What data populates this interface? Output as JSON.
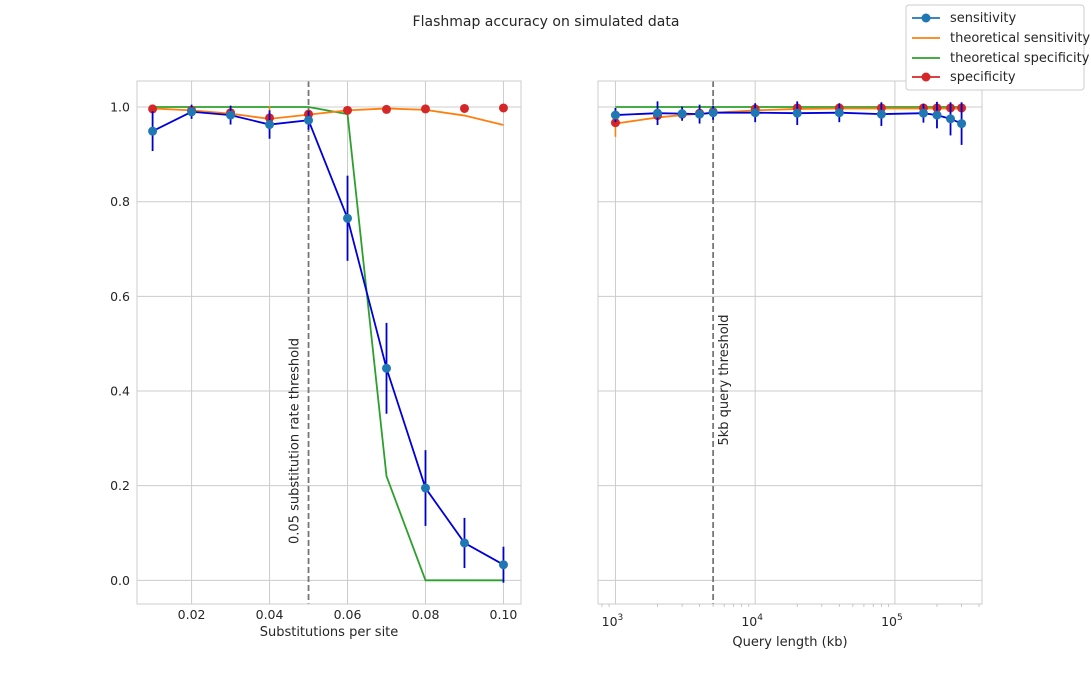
{
  "figure": {
    "suptitle": "Flashmap accuracy on simulated data"
  },
  "legend": {
    "placement": "upper right",
    "entries": [
      {
        "label": "sensitivity",
        "color": "#1f77b4",
        "marker": "circle"
      },
      {
        "label": "theoretical sensitivity",
        "color": "#ff7f0e",
        "marker": "none"
      },
      {
        "label": "theoretical specificity",
        "color": "#2ca02c",
        "marker": "none"
      },
      {
        "label": "specificity",
        "color": "#d62728",
        "marker": "circle"
      }
    ]
  },
  "chart_data": [
    {
      "type": "line",
      "panel": "left",
      "xlabel": "Substitutions per site",
      "ylabel": "",
      "xlim": [
        0.006,
        0.1045
      ],
      "ylim": [
        -0.05,
        1.055
      ],
      "xticks": [
        0.02,
        0.04,
        0.06,
        0.08,
        0.1
      ],
      "xtick_labels": [
        "0.02",
        "0.04",
        "0.06",
        "0.08",
        "0.10"
      ],
      "yticks": [
        0.0,
        0.2,
        0.4,
        0.6,
        0.8,
        1.0
      ],
      "ytick_labels": [
        "0.0",
        "0.2",
        "0.4",
        "0.6",
        "0.8",
        "1.0"
      ],
      "grid": true,
      "threshold": {
        "x": 0.05,
        "label": "0.05 substitution rate threshold",
        "color": "#777777"
      },
      "series": [
        {
          "name": "sensitivity",
          "color": "#1f77b4",
          "line_color": "#0000dd",
          "err_color": "#0000cc",
          "x": [
            0.01,
            0.02,
            0.03,
            0.04,
            0.05,
            0.06,
            0.07,
            0.08,
            0.09,
            0.1
          ],
          "y": [
            0.949,
            0.99,
            0.983,
            0.963,
            0.972,
            0.765,
            0.448,
            0.195,
            0.079,
            0.033
          ],
          "err": [
            0.042,
            0.015,
            0.02,
            0.03,
            0.02,
            0.09,
            0.096,
            0.08,
            0.053,
            0.038
          ]
        },
        {
          "name": "theoretical sensitivity",
          "color": "#ff7f0e",
          "x": [
            0.01,
            0.02,
            0.03,
            0.04,
            0.05,
            0.06,
            0.07,
            0.08,
            0.09,
            0.1
          ],
          "y": [
            0.997,
            0.993,
            0.986,
            0.975,
            0.984,
            0.993,
            0.997,
            0.994,
            0.982,
            0.962
          ]
        },
        {
          "name": "theoretical specificity",
          "color": "#2ca02c",
          "x": [
            0.01,
            0.02,
            0.03,
            0.04,
            0.05,
            0.06,
            0.07,
            0.08,
            0.09,
            0.1
          ],
          "y": [
            1.0,
            1.0,
            1.0,
            1.0,
            1.0,
            0.985,
            0.22,
            0.0,
            0.0,
            0.0
          ]
        },
        {
          "name": "specificity",
          "color": "#d62728",
          "x": [
            0.01,
            0.02,
            0.03,
            0.04,
            0.05,
            0.06,
            0.07,
            0.08,
            0.09,
            0.1
          ],
          "y": [
            0.996,
            0.993,
            0.988,
            0.977,
            0.985,
            0.993,
            0.995,
            0.996,
            0.997,
            0.998
          ],
          "err": [
            0.0,
            0.0,
            0.0,
            0.025,
            0.0,
            0.0,
            0.0,
            0.0,
            0.0,
            0.0
          ]
        }
      ]
    },
    {
      "type": "line",
      "panel": "right",
      "xscale": "log",
      "xlabel": "Query length (kb)",
      "ylabel": "",
      "xlim": [
        750,
        420000
      ],
      "ylim": [
        -0.05,
        1.055
      ],
      "xticks": [
        1000,
        10000,
        100000
      ],
      "xtick_labels": [
        "10",
        "10",
        "10"
      ],
      "xtick_exponents": [
        "3",
        "4",
        "5"
      ],
      "grid": true,
      "threshold": {
        "x": 5000,
        "label": "5kb query threshold",
        "color": "#777777"
      },
      "series": [
        {
          "name": "sensitivity",
          "color": "#1f77b4",
          "line_color": "#0000dd",
          "err_color": "#0000cc",
          "x": [
            1000,
            2000,
            3000,
            4000,
            5000,
            10000,
            20000,
            40000,
            80000,
            160000,
            200000,
            250000,
            300000
          ],
          "y": [
            0.983,
            0.987,
            0.986,
            0.985,
            0.988,
            0.988,
            0.987,
            0.988,
            0.985,
            0.987,
            0.983,
            0.975,
            0.965
          ],
          "err": [
            0.015,
            0.025,
            0.015,
            0.02,
            0.015,
            0.02,
            0.025,
            0.02,
            0.025,
            0.02,
            0.028,
            0.035,
            0.045
          ]
        },
        {
          "name": "theoretical sensitivity",
          "color": "#ff7f0e",
          "x": [
            1000,
            2000,
            3000,
            5000,
            10000,
            20000,
            40000,
            80000,
            160000,
            200000,
            250000,
            300000
          ],
          "y": [
            0.965,
            0.978,
            0.983,
            0.988,
            0.993,
            0.996,
            0.997,
            0.997,
            0.997,
            0.997,
            0.997,
            0.997
          ]
        },
        {
          "name": "theoretical specificity",
          "color": "#2ca02c",
          "x": [
            1000,
            300000
          ],
          "y": [
            1.0,
            1.0
          ]
        },
        {
          "name": "specificity",
          "color": "#d62728",
          "x": [
            1000,
            2000,
            3000,
            4000,
            5000,
            10000,
            20000,
            40000,
            80000,
            160000,
            200000,
            250000,
            300000
          ],
          "y": [
            0.967,
            0.982,
            0.985,
            0.987,
            0.99,
            0.996,
            0.998,
            0.998,
            0.998,
            0.998,
            0.998,
            0.998,
            0.998
          ],
          "err": [
            0.03,
            0.01,
            0.01,
            0.008,
            0.006,
            0.0,
            0.0,
            0.0,
            0.0,
            0.0,
            0.0,
            0.0,
            0.0
          ]
        }
      ]
    }
  ]
}
